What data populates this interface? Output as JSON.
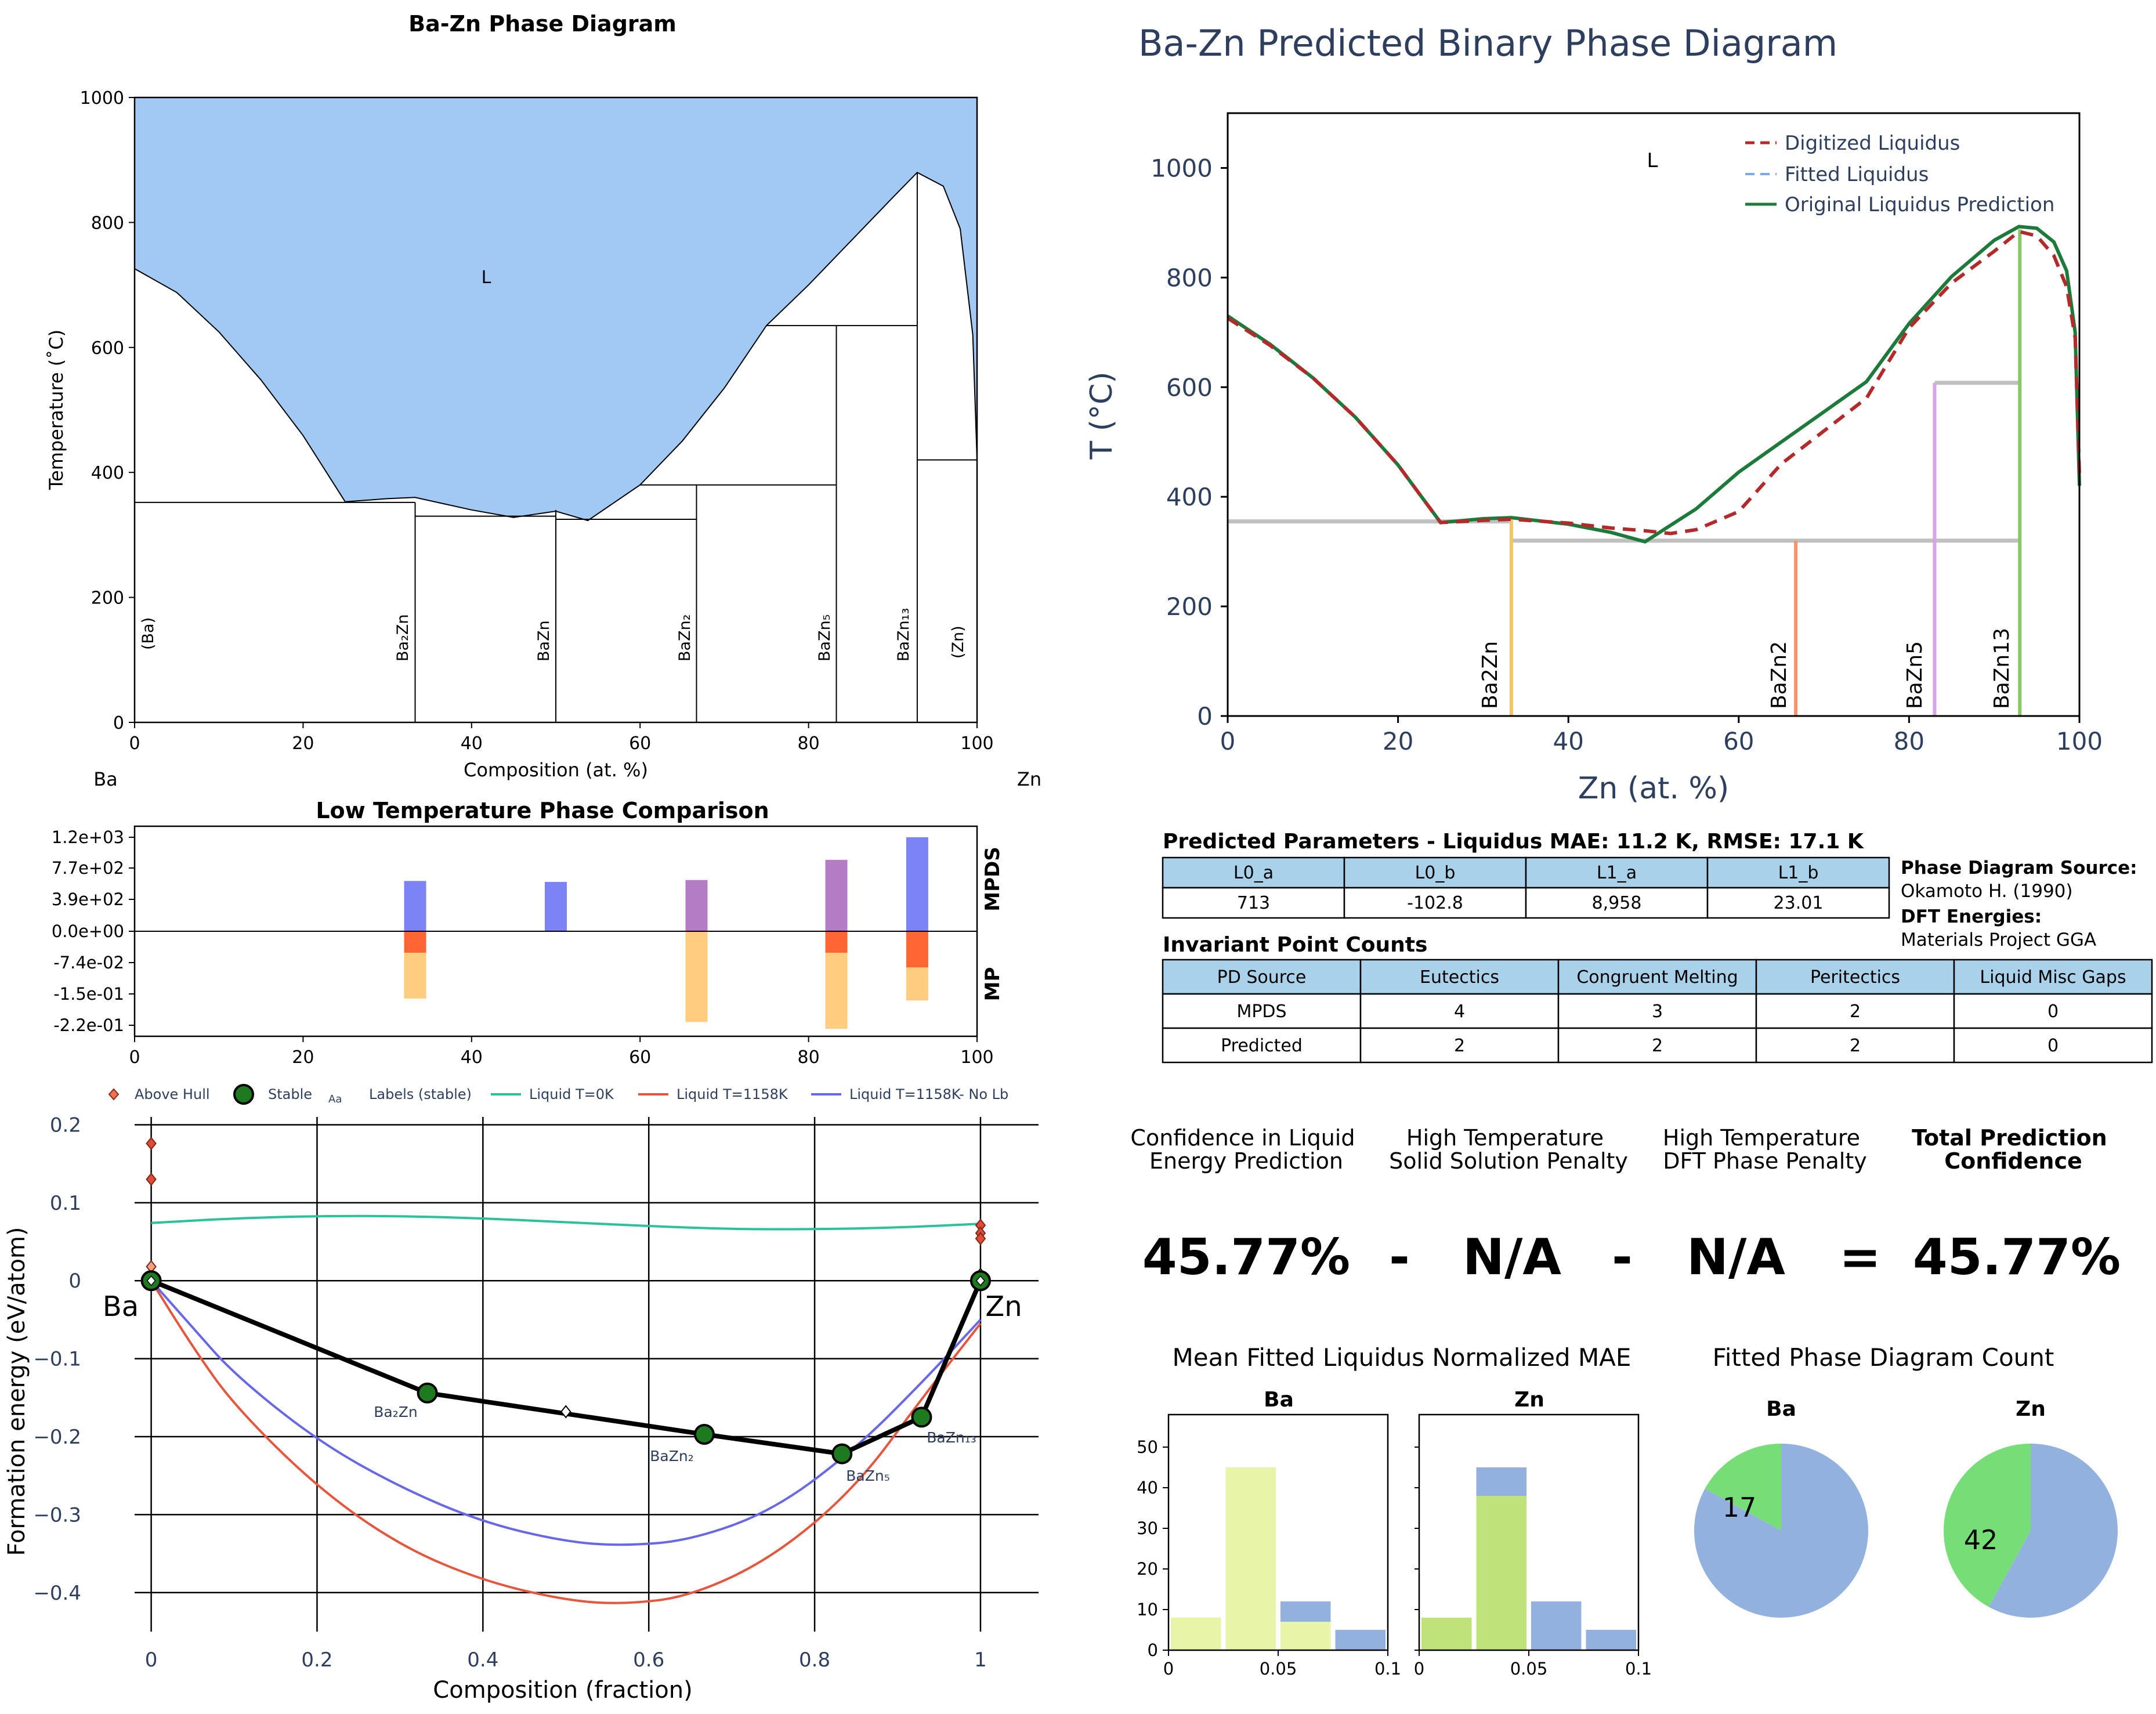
{
  "exp_pd": {
    "title": "Ba-Zn Phase Diagram",
    "xlabel": "Composition (at. %)",
    "ylabel": "Temperature (˚C)",
    "left_element": "Ba",
    "right_element": "Zn",
    "liquid_label": "L",
    "xticks": [
      "0",
      "20",
      "40",
      "60",
      "80",
      "100"
    ],
    "yticks": [
      "0",
      "200",
      "400",
      "600",
      "800",
      "1000"
    ],
    "phase_labels": [
      "(Ba)",
      "Ba₂Zn",
      "BaZn",
      "BaZn₂",
      "BaZn₅",
      "BaZn₁₃",
      "(Zn)"
    ]
  },
  "pred_pd": {
    "title": "Ba-Zn Predicted Binary Phase Diagram",
    "xlabel": "Zn (at. %)",
    "ylabel": "T (°C)",
    "liquid_label": "L",
    "xticks": [
      "0",
      "20",
      "40",
      "60",
      "80",
      "100"
    ],
    "yticks": [
      "0",
      "200",
      "400",
      "600",
      "800",
      "1000"
    ],
    "legend": [
      "Digitized Liquidus",
      "Fitted Liquidus",
      "Original Liquidus Prediction"
    ],
    "phase_labels": [
      "Ba2Zn",
      "BaZn2",
      "BaZn5",
      "BaZn13"
    ]
  },
  "low_t": {
    "title": "Low Temperature Phase Comparison",
    "upper_label": "MPDS",
    "lower_label": "MP",
    "yticks": [
      "1.2e+03",
      "7.7e+02",
      "3.9e+02",
      "0.0e+00",
      "-7.4e-02",
      "-1.5e-01",
      "-2.2e-01"
    ],
    "xticks": [
      "0",
      "20",
      "40",
      "60",
      "80",
      "100"
    ]
  },
  "hull": {
    "ylabel": "Formation energy (eV/atom)",
    "xlabel": "Composition (fraction)",
    "legend": [
      "Above Hull",
      "Stable",
      "Labels (stable)",
      "Liquid T=0K",
      "Liquid T=1158K",
      "Liquid T=1158K- No Lb"
    ],
    "legend_sample_text": "Aa",
    "yticks": [
      "0.2",
      "0.1",
      "0",
      "−0.1",
      "−0.2",
      "−0.3",
      "−0.4"
    ],
    "xticks": [
      "0",
      "0.2",
      "0.4",
      "0.6",
      "0.8",
      "1"
    ],
    "left_element": "Ba",
    "right_element": "Zn",
    "phase_labels": [
      "Ba₂Zn",
      "BaZn₂",
      "BaZn₅",
      "BaZn₁₃"
    ]
  },
  "params": {
    "title": "Predicted Parameters - Liquidus MAE: 11.2 K, RMSE: 17.1 K",
    "headers": [
      "L0_a",
      "L0_b",
      "L1_a",
      "L1_b"
    ],
    "values": [
      "713",
      "-102.8",
      "8,958",
      "23.01"
    ]
  },
  "source": {
    "pd_title": "Phase Diagram Source:",
    "pd_value": "Okamoto H. (1990)",
    "dft_title": "DFT Energies:",
    "dft_value": "Materials Project GGA"
  },
  "invariants": {
    "title": "Invariant Point Counts",
    "headers": [
      "PD Source",
      "Eutectics",
      "Congruent Melting",
      "Peritectics",
      "Liquid Misc Gaps"
    ],
    "rows": [
      [
        "MPDS",
        "4",
        "3",
        "2",
        "0"
      ],
      [
        "Predicted",
        "2",
        "2",
        "2",
        "0"
      ]
    ]
  },
  "confidence": {
    "label1": [
      "Confidence in Liquid",
      "Energy Prediction"
    ],
    "label2": [
      "High Temperature",
      "Solid Solution Penalty"
    ],
    "label3": [
      "High Temperature",
      "DFT Phase Penalty"
    ],
    "label4": [
      "Total Prediction",
      "Confidence"
    ],
    "value1": "45.77%",
    "op1": "-",
    "value2": "N/A",
    "op2": "-",
    "value3": "N/A",
    "op3": "=",
    "value4": "45.77%"
  },
  "mae_hist": {
    "title": "Mean Fitted Liquidus Normalized MAE",
    "panels": [
      "Ba",
      "Zn"
    ],
    "yticks": [
      "0",
      "10",
      "20",
      "30",
      "40",
      "50"
    ],
    "xticks": [
      "0",
      "0.05",
      "0.1"
    ]
  },
  "pie": {
    "title": "Fitted Phase Diagram Count",
    "panels": [
      "Ba",
      "Zn"
    ],
    "labels": [
      "17",
      "42"
    ]
  },
  "colors": {
    "liquid_fill": "#a1c9f4",
    "mpds_blue": "#7b83f5",
    "mpds_purple": "#b57cc6",
    "mp_red": "#ff6633",
    "mp_orange": "#ffcc80",
    "green_line": "#1e7a3b",
    "red_dash": "#b22a2a",
    "table_header": "#a9d1ea",
    "teal": "#2bc19b",
    "tomato": "#e4573d",
    "slate": "#6767e8",
    "text_navy": "#2d3e5e"
  },
  "chart_data": [
    {
      "type": "line",
      "name": "exp_pd",
      "xlim": [
        0,
        100
      ],
      "ylim": [
        0,
        1000
      ],
      "liquidus": [
        [
          0,
          726
        ],
        [
          5,
          688
        ],
        [
          10,
          625
        ],
        [
          15,
          548
        ],
        [
          20,
          459
        ],
        [
          25,
          353
        ],
        [
          30,
          358
        ],
        [
          33.3,
          360
        ],
        [
          40,
          340
        ],
        [
          45,
          328
        ],
        [
          50,
          338
        ],
        [
          53.8,
          323
        ],
        [
          60,
          380
        ],
        [
          65,
          450
        ],
        [
          70,
          535
        ],
        [
          75,
          635
        ],
        [
          80,
          700
        ],
        [
          85,
          770
        ],
        [
          90,
          840
        ],
        [
          92.9,
          880
        ],
        [
          96,
          858
        ],
        [
          98,
          790
        ],
        [
          99.5,
          620
        ],
        [
          100,
          420
        ]
      ],
      "invariant_lines": [
        [
          0,
          25,
          352
        ],
        [
          25,
          33.3,
          352
        ],
        [
          33.3,
          50,
          330
        ],
        [
          50,
          66.7,
          325
        ],
        [
          60,
          83.3,
          380
        ],
        [
          75,
          92.9,
          635
        ],
        [
          92.9,
          100,
          420
        ]
      ],
      "compounds": [
        33.3,
        50,
        66.7,
        83.3,
        92.9
      ]
    },
    {
      "type": "line",
      "name": "pred_pd",
      "xlim": [
        0,
        100
      ],
      "ylim": [
        0,
        1100
      ],
      "digitized": [
        [
          0,
          726
        ],
        [
          5,
          676
        ],
        [
          10,
          617
        ],
        [
          15,
          545
        ],
        [
          20,
          458
        ],
        [
          25,
          353
        ],
        [
          30,
          357
        ],
        [
          33.3,
          359
        ],
        [
          40,
          352
        ],
        [
          45,
          343
        ],
        [
          49,
          338
        ],
        [
          52,
          333
        ],
        [
          55,
          340
        ],
        [
          60,
          373
        ],
        [
          65,
          460
        ],
        [
          70,
          520
        ],
        [
          75,
          580
        ],
        [
          80,
          708
        ],
        [
          85,
          790
        ],
        [
          90,
          848
        ],
        [
          92.9,
          884
        ],
        [
          95,
          876
        ],
        [
          97,
          840
        ],
        [
          98.5,
          783
        ],
        [
          99.5,
          690
        ],
        [
          100,
          440
        ]
      ],
      "original": [
        [
          0,
          730
        ],
        [
          5,
          678
        ],
        [
          10,
          617
        ],
        [
          15,
          545
        ],
        [
          20,
          458
        ],
        [
          25,
          353
        ],
        [
          30,
          360
        ],
        [
          33.3,
          362
        ],
        [
          40,
          350
        ],
        [
          45,
          335
        ],
        [
          49,
          318
        ],
        [
          55,
          378
        ],
        [
          60,
          445
        ],
        [
          65,
          500
        ],
        [
          70,
          555
        ],
        [
          75,
          610
        ],
        [
          80,
          716
        ],
        [
          85,
          802
        ],
        [
          90,
          868
        ],
        [
          92.9,
          893
        ],
        [
          95,
          890
        ],
        [
          97,
          865
        ],
        [
          98.5,
          812
        ],
        [
          99.5,
          700
        ],
        [
          100,
          420
        ]
      ],
      "gray_lines": [
        [
          0,
          33.3,
          355
        ],
        [
          33.3,
          93,
          320
        ],
        [
          83,
          93,
          608
        ]
      ],
      "compounds": [
        {
          "x": 33.3,
          "color": "#f0c36d"
        },
        {
          "x": 66.7,
          "color": "#f0956d"
        },
        {
          "x": 83,
          "color": "#d4a5e8"
        },
        {
          "x": 93,
          "color": "#86c86a"
        }
      ]
    },
    {
      "type": "bar",
      "name": "low_t",
      "mpds": [
        {
          "x": 33.3,
          "h": 0.535,
          "color": "#7b83f5"
        },
        {
          "x": 50,
          "h": 0.525,
          "color": "#7b83f5"
        },
        {
          "x": 66.7,
          "h": 0.545,
          "color": "#b57cc6"
        },
        {
          "x": 83.3,
          "h": 0.76,
          "color": "#b57cc6"
        },
        {
          "x": 92.9,
          "h": 1.0,
          "color": "#7b83f5"
        }
      ],
      "mp": [
        {
          "x": 33.3,
          "red": 0.22,
          "orange": 0.69
        },
        {
          "x": 66.7,
          "red": 0,
          "orange": 0.93
        },
        {
          "x": 83.3,
          "red": 0.22,
          "orange": 1.0
        },
        {
          "x": 92.9,
          "red": 0.37,
          "orange": 0.71
        }
      ]
    },
    {
      "type": "scatter",
      "name": "hull",
      "xlim": [
        -0.02,
        1.07
      ],
      "ylim": [
        -0.45,
        0.21
      ],
      "stable": [
        [
          0,
          0
        ],
        [
          0.333,
          -0.144
        ],
        [
          0.667,
          -0.197
        ],
        [
          0.833,
          -0.222
        ],
        [
          0.929,
          -0.175
        ],
        [
          1,
          0
        ]
      ],
      "above_hull": [
        [
          0,
          0.176
        ],
        [
          0,
          0.13
        ],
        [
          0,
          0.018
        ],
        [
          0.5,
          -0.168
        ],
        [
          1,
          0.071
        ],
        [
          1,
          0.061
        ],
        [
          1,
          0.054
        ],
        [
          1,
          0.008
        ]
      ],
      "liquid_0K": [
        [
          0,
          0.074
        ],
        [
          0.1,
          0.08
        ],
        [
          0.2,
          0.083
        ],
        [
          0.3,
          0.083
        ],
        [
          0.4,
          0.08
        ],
        [
          0.5,
          0.075
        ],
        [
          0.6,
          0.07
        ],
        [
          0.7,
          0.066
        ],
        [
          0.8,
          0.066
        ],
        [
          0.9,
          0.068
        ],
        [
          1,
          0.073
        ]
      ],
      "liquid_1158K": [
        [
          0,
          0
        ],
        [
          0.05,
          -0.085
        ],
        [
          0.1,
          -0.16
        ],
        [
          0.2,
          -0.265
        ],
        [
          0.3,
          -0.34
        ],
        [
          0.4,
          -0.385
        ],
        [
          0.5,
          -0.41
        ],
        [
          0.57,
          -0.415
        ],
        [
          0.65,
          -0.405
        ],
        [
          0.75,
          -0.355
        ],
        [
          0.85,
          -0.265
        ],
        [
          0.93,
          -0.15
        ],
        [
          1,
          -0.055
        ]
      ],
      "liquid_1158K_noLb": [
        [
          0,
          0
        ],
        [
          0.05,
          -0.06
        ],
        [
          0.1,
          -0.12
        ],
        [
          0.2,
          -0.205
        ],
        [
          0.3,
          -0.265
        ],
        [
          0.4,
          -0.31
        ],
        [
          0.5,
          -0.335
        ],
        [
          0.57,
          -0.34
        ],
        [
          0.65,
          -0.333
        ],
        [
          0.75,
          -0.295
        ],
        [
          0.85,
          -0.215
        ],
        [
          0.93,
          -0.13
        ],
        [
          1,
          -0.05
        ]
      ]
    },
    {
      "type": "bar",
      "name": "mae_hist_ba",
      "bins": [
        0,
        0.025,
        0.05,
        0.075,
        0.1
      ],
      "stack_bottom": [
        8,
        45,
        7,
        0
      ],
      "stack_top": [
        0,
        0,
        5,
        5
      ],
      "ylim": [
        0,
        58
      ]
    },
    {
      "type": "bar",
      "name": "mae_hist_zn",
      "bins": [
        0,
        0.025,
        0.05,
        0.075,
        0.1
      ],
      "stack_bottom": [
        8,
        38,
        0,
        0
      ],
      "stack_top": [
        0,
        7,
        12,
        5
      ],
      "ylim": [
        0,
        58
      ]
    },
    {
      "type": "pie",
      "name": "pie_ba",
      "values": [
        17,
        83
      ],
      "colors": [
        "#77dd77",
        "#92b1de"
      ],
      "labels": [
        "17",
        ""
      ]
    },
    {
      "type": "pie",
      "name": "pie_zn",
      "values": [
        42,
        58
      ],
      "colors": [
        "#77dd77",
        "#92b1de"
      ],
      "labels": [
        "42",
        ""
      ]
    }
  ]
}
